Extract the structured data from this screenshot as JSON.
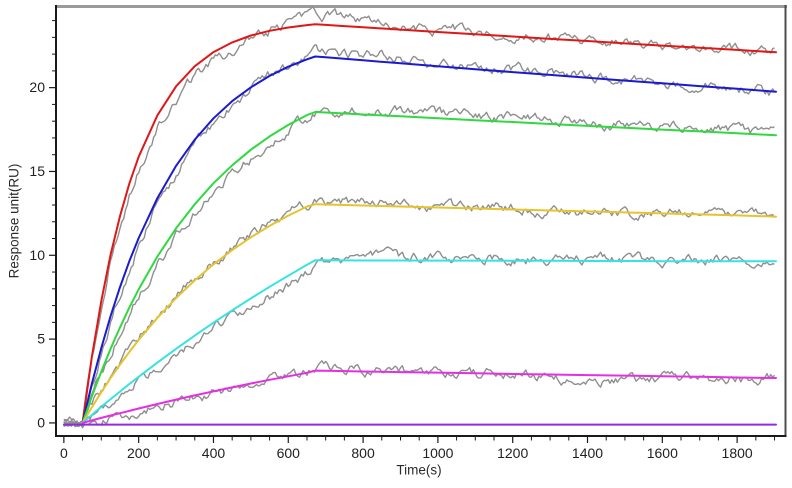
{
  "chart_data": {
    "type": "line",
    "title": "",
    "xlabel": "Time(s)",
    "ylabel": "Response unit(RU)",
    "x_axis": {
      "min": -21,
      "max": 1928,
      "major_ticks": [
        0,
        200,
        400,
        600,
        800,
        1000,
        1200,
        1400,
        1600,
        1800
      ],
      "minor_step": 50,
      "minor_min": 0,
      "minor_max": 1900
    },
    "y_axis": {
      "min": -0.78,
      "max": 24.93,
      "major_ticks": [
        0,
        5,
        10,
        15,
        20
      ],
      "minor_step": 1,
      "minor_min": 1,
      "minor_max": 24
    },
    "grid": false,
    "legend": "none",
    "frame": {
      "axis_color": "#1a1a1a",
      "top_border_color": "#9a9a9a",
      "right_border_color": "#4d4d4d",
      "tick_label_color": "#222222"
    },
    "measured_color": "#8f8f8f",
    "noise": {
      "step_s": 5,
      "persistence": 0.74,
      "amplitude": 0.46
    },
    "association_start_s": 50,
    "association_end_s": 672,
    "series": [
      {
        "name": "fit-red",
        "color": "#e01717",
        "fit": [
          [
            50,
            0
          ],
          [
            75,
            3.96
          ],
          [
            100,
            7.27
          ],
          [
            125,
            10.04
          ],
          [
            150,
            12.34
          ],
          [
            175,
            14.27
          ],
          [
            200,
            15.88
          ],
          [
            250,
            18.35
          ],
          [
            300,
            20.08
          ],
          [
            350,
            21.28
          ],
          [
            400,
            22.12
          ],
          [
            450,
            22.7
          ],
          [
            500,
            23.11
          ],
          [
            550,
            23.39
          ],
          [
            600,
            23.59
          ],
          [
            650,
            23.73
          ],
          [
            672,
            23.78
          ],
          [
            700,
            23.74
          ],
          [
            750,
            23.67
          ],
          [
            800,
            23.6
          ],
          [
            900,
            23.46
          ],
          [
            1000,
            23.32
          ],
          [
            1100,
            23.19
          ],
          [
            1200,
            23.05
          ],
          [
            1300,
            22.91
          ],
          [
            1400,
            22.78
          ],
          [
            1500,
            22.64
          ],
          [
            1600,
            22.51
          ],
          [
            1700,
            22.38
          ],
          [
            1800,
            22.25
          ],
          [
            1904,
            22.11
          ]
        ],
        "bias": [
          [
            0,
            0
          ],
          [
            55,
            -0.1
          ],
          [
            150,
            -0.6
          ],
          [
            300,
            -0.8
          ],
          [
            450,
            -0.45
          ],
          [
            600,
            0.25
          ],
          [
            680,
            0.5
          ],
          [
            760,
            0.55
          ],
          [
            850,
            0.3
          ],
          [
            950,
            0.05
          ],
          [
            1050,
            0.2
          ],
          [
            1150,
            -0.05
          ],
          [
            1250,
            0.1
          ],
          [
            1400,
            0
          ],
          [
            1550,
            0.1
          ],
          [
            1700,
            0
          ],
          [
            1800,
            0.05
          ],
          [
            1904,
            0.1
          ]
        ]
      },
      {
        "name": "fit-blue",
        "color": "#1a1ad0",
        "fit": [
          [
            50,
            0
          ],
          [
            75,
            2.35
          ],
          [
            100,
            4.47
          ],
          [
            125,
            6.38
          ],
          [
            150,
            8.1
          ],
          [
            175,
            9.64
          ],
          [
            200,
            11.03
          ],
          [
            250,
            13.41
          ],
          [
            300,
            15.34
          ],
          [
            350,
            16.9
          ],
          [
            400,
            18.17
          ],
          [
            450,
            19.2
          ],
          [
            500,
            20.02
          ],
          [
            550,
            20.7
          ],
          [
            600,
            21.25
          ],
          [
            650,
            21.69
          ],
          [
            672,
            21.86
          ],
          [
            700,
            21.81
          ],
          [
            750,
            21.72
          ],
          [
            800,
            21.63
          ],
          [
            900,
            21.45
          ],
          [
            1000,
            21.28
          ],
          [
            1100,
            21.1
          ],
          [
            1200,
            20.93
          ],
          [
            1300,
            20.76
          ],
          [
            1400,
            20.59
          ],
          [
            1500,
            20.42
          ],
          [
            1600,
            20.26
          ],
          [
            1700,
            20.09
          ],
          [
            1800,
            19.93
          ],
          [
            1904,
            19.76
          ]
        ],
        "bias": [
          [
            0,
            0
          ],
          [
            55,
            0
          ],
          [
            200,
            -0.45
          ],
          [
            350,
            -0.35
          ],
          [
            500,
            -0.15
          ],
          [
            620,
            0.15
          ],
          [
            720,
            0.3
          ],
          [
            850,
            0.35
          ],
          [
            1000,
            0.1
          ],
          [
            1150,
            0.15
          ],
          [
            1300,
            0.2
          ],
          [
            1450,
            0
          ],
          [
            1600,
            0.05
          ],
          [
            1750,
            0.1
          ],
          [
            1904,
            -0.1
          ]
        ]
      },
      {
        "name": "fit-green",
        "color": "#2fd93f",
        "fit": [
          [
            50,
            0
          ],
          [
            75,
            1.59
          ],
          [
            100,
            3.06
          ],
          [
            125,
            4.43
          ],
          [
            150,
            5.7
          ],
          [
            175,
            6.88
          ],
          [
            200,
            7.97
          ],
          [
            250,
            9.93
          ],
          [
            300,
            11.61
          ],
          [
            350,
            13.05
          ],
          [
            400,
            14.3
          ],
          [
            450,
            15.37
          ],
          [
            500,
            16.3
          ],
          [
            550,
            17.09
          ],
          [
            600,
            17.78
          ],
          [
            650,
            18.36
          ],
          [
            672,
            18.55
          ],
          [
            700,
            18.52
          ],
          [
            750,
            18.46
          ],
          [
            800,
            18.4
          ],
          [
            900,
            18.29
          ],
          [
            1000,
            18.17
          ],
          [
            1100,
            18.06
          ],
          [
            1200,
            17.95
          ],
          [
            1300,
            17.83
          ],
          [
            1400,
            17.72
          ],
          [
            1500,
            17.61
          ],
          [
            1600,
            17.5
          ],
          [
            1700,
            17.39
          ],
          [
            1800,
            17.28
          ],
          [
            1904,
            17.16
          ]
        ],
        "bias": [
          [
            0,
            0
          ],
          [
            55,
            0
          ],
          [
            200,
            -0.45
          ],
          [
            350,
            -0.6
          ],
          [
            500,
            -0.55
          ],
          [
            620,
            -0.35
          ],
          [
            700,
            0.15
          ],
          [
            800,
            0.35
          ],
          [
            950,
            0.4
          ],
          [
            1100,
            0.2
          ],
          [
            1250,
            0.3
          ],
          [
            1400,
            0.15
          ],
          [
            1550,
            0.1
          ],
          [
            1700,
            0.2
          ],
          [
            1904,
            0
          ]
        ]
      },
      {
        "name": "fit-yellow",
        "color": "#e5c42e",
        "fit": [
          [
            50,
            0
          ],
          [
            75,
            0.94
          ],
          [
            100,
            1.83
          ],
          [
            125,
            2.68
          ],
          [
            150,
            3.48
          ],
          [
            175,
            4.23
          ],
          [
            200,
            4.95
          ],
          [
            250,
            6.27
          ],
          [
            300,
            7.45
          ],
          [
            350,
            8.51
          ],
          [
            400,
            9.46
          ],
          [
            450,
            10.31
          ],
          [
            500,
            11.07
          ],
          [
            550,
            11.75
          ],
          [
            600,
            12.37
          ],
          [
            650,
            12.91
          ],
          [
            672,
            13.05
          ],
          [
            700,
            13.03
          ],
          [
            750,
            13.0
          ],
          [
            800,
            12.97
          ],
          [
            900,
            12.91
          ],
          [
            1000,
            12.85
          ],
          [
            1100,
            12.79
          ],
          [
            1200,
            12.73
          ],
          [
            1300,
            12.67
          ],
          [
            1400,
            12.62
          ],
          [
            1500,
            12.56
          ],
          [
            1600,
            12.5
          ],
          [
            1700,
            12.44
          ],
          [
            1800,
            12.38
          ],
          [
            1904,
            12.31
          ]
        ],
        "bias": [
          [
            0,
            0
          ],
          [
            55,
            0
          ],
          [
            250,
            0.1
          ],
          [
            450,
            0.05
          ],
          [
            650,
            0.1
          ],
          [
            800,
            0.2
          ],
          [
            1000,
            0
          ],
          [
            1200,
            0.1
          ],
          [
            1400,
            -0.1
          ],
          [
            1600,
            0
          ],
          [
            1800,
            0.05
          ],
          [
            1904,
            0
          ]
        ]
      },
      {
        "name": "fit-cyan",
        "color": "#35e3e3",
        "fit": [
          [
            50,
            0
          ],
          [
            75,
            0.48
          ],
          [
            100,
            0.96
          ],
          [
            125,
            1.42
          ],
          [
            150,
            1.87
          ],
          [
            175,
            2.32
          ],
          [
            200,
            2.75
          ],
          [
            250,
            3.6
          ],
          [
            300,
            4.42
          ],
          [
            350,
            5.21
          ],
          [
            400,
            5.98
          ],
          [
            450,
            6.72
          ],
          [
            500,
            7.43
          ],
          [
            550,
            8.12
          ],
          [
            600,
            8.78
          ],
          [
            650,
            9.43
          ],
          [
            672,
            9.7
          ],
          [
            700,
            9.7
          ],
          [
            800,
            9.69
          ],
          [
            900,
            9.69
          ],
          [
            1000,
            9.68
          ],
          [
            1100,
            9.68
          ],
          [
            1200,
            9.67
          ],
          [
            1300,
            9.67
          ],
          [
            1400,
            9.66
          ],
          [
            1500,
            9.66
          ],
          [
            1600,
            9.65
          ],
          [
            1700,
            9.65
          ],
          [
            1800,
            9.65
          ],
          [
            1904,
            9.64
          ]
        ],
        "bias": [
          [
            0,
            0
          ],
          [
            55,
            0
          ],
          [
            200,
            -0.3
          ],
          [
            400,
            -0.5
          ],
          [
            550,
            -0.6
          ],
          [
            640,
            -0.5
          ],
          [
            700,
            -0.15
          ],
          [
            800,
            0.2
          ],
          [
            1000,
            0.15
          ],
          [
            1200,
            0.1
          ],
          [
            1400,
            0.12
          ],
          [
            1600,
            0.05
          ],
          [
            1800,
            0.2
          ],
          [
            1904,
            0.05
          ]
        ]
      },
      {
        "name": "fit-magenta",
        "color": "#e52ee5",
        "fit": [
          [
            50,
            0
          ],
          [
            75,
            0.15
          ],
          [
            100,
            0.3
          ],
          [
            125,
            0.44
          ],
          [
            150,
            0.58
          ],
          [
            175,
            0.72
          ],
          [
            200,
            0.86
          ],
          [
            250,
            1.13
          ],
          [
            300,
            1.39
          ],
          [
            350,
            1.64
          ],
          [
            400,
            1.88
          ],
          [
            450,
            2.12
          ],
          [
            500,
            2.35
          ],
          [
            550,
            2.57
          ],
          [
            600,
            2.78
          ],
          [
            650,
            2.99
          ],
          [
            672,
            3.12
          ],
          [
            700,
            3.11
          ],
          [
            800,
            3.07
          ],
          [
            900,
            3.03
          ],
          [
            1000,
            3.0
          ],
          [
            1100,
            2.96
          ],
          [
            1200,
            2.92
          ],
          [
            1300,
            2.89
          ],
          [
            1400,
            2.85
          ],
          [
            1500,
            2.82
          ],
          [
            1600,
            2.78
          ],
          [
            1700,
            2.75
          ],
          [
            1800,
            2.71
          ],
          [
            1904,
            2.68
          ]
        ],
        "bias": [
          [
            0,
            -0.05
          ],
          [
            80,
            -0.3
          ],
          [
            150,
            -0.25
          ],
          [
            300,
            -0.15
          ],
          [
            450,
            -0.05
          ],
          [
            600,
            0.05
          ],
          [
            700,
            0.1
          ],
          [
            850,
            0
          ],
          [
            1000,
            0.05
          ],
          [
            1150,
            -0.05
          ],
          [
            1300,
            -0.15
          ],
          [
            1450,
            -0.25
          ],
          [
            1600,
            -0.15
          ],
          [
            1750,
            -0.1
          ],
          [
            1904,
            0
          ]
        ]
      },
      {
        "name": "fit-purple-baseline",
        "color": "#9328e0",
        "measured": false,
        "fit": [
          [
            0,
            -0.1
          ],
          [
            1904,
            -0.1
          ]
        ],
        "bias": []
      }
    ]
  }
}
